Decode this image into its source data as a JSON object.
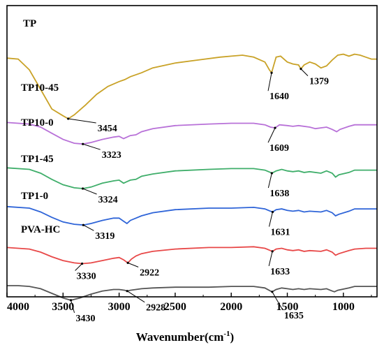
{
  "chart_data": {
    "type": "line",
    "title": "",
    "xlabel": "Wavenumber(cm",
    "xlabel_sup": "-1",
    "xlabel_tail": ")",
    "ylabel": "",
    "xlim": [
      4000,
      700
    ],
    "x_reversed": true,
    "x_ticks": [
      4000,
      3500,
      3000,
      2500,
      2000,
      1500,
      1000
    ],
    "grid": false,
    "legend": "none (series labelled inline)",
    "series": [
      {
        "name": "TP",
        "color": "#c9a227",
        "points": [
          [
            4000,
            0.62
          ],
          [
            3900,
            0.61
          ],
          [
            3800,
            0.5
          ],
          [
            3700,
            0.3
          ],
          [
            3600,
            0.1
          ],
          [
            3500,
            0.03
          ],
          [
            3454,
            0.0
          ],
          [
            3400,
            0.04
          ],
          [
            3300,
            0.14
          ],
          [
            3200,
            0.25
          ],
          [
            3100,
            0.33
          ],
          [
            3000,
            0.38
          ],
          [
            2950,
            0.4
          ],
          [
            2900,
            0.43
          ],
          [
            2800,
            0.47
          ],
          [
            2700,
            0.52
          ],
          [
            2500,
            0.57
          ],
          [
            2300,
            0.6
          ],
          [
            2100,
            0.63
          ],
          [
            2000,
            0.64
          ],
          [
            1900,
            0.65
          ],
          [
            1800,
            0.63
          ],
          [
            1700,
            0.58
          ],
          [
            1660,
            0.5
          ],
          [
            1640,
            0.47
          ],
          [
            1620,
            0.55
          ],
          [
            1600,
            0.63
          ],
          [
            1560,
            0.64
          ],
          [
            1500,
            0.58
          ],
          [
            1450,
            0.56
          ],
          [
            1400,
            0.55
          ],
          [
            1379,
            0.51
          ],
          [
            1350,
            0.55
          ],
          [
            1300,
            0.58
          ],
          [
            1250,
            0.56
          ],
          [
            1200,
            0.52
          ],
          [
            1150,
            0.54
          ],
          [
            1100,
            0.6
          ],
          [
            1050,
            0.65
          ],
          [
            1000,
            0.66
          ],
          [
            950,
            0.64
          ],
          [
            900,
            0.66
          ],
          [
            850,
            0.65
          ],
          [
            800,
            0.63
          ],
          [
            750,
            0.61
          ],
          [
            700,
            0.61
          ]
        ],
        "annotations": [
          {
            "label": "3454",
            "x": 3454
          },
          {
            "label": "1640",
            "x": 1640
          },
          {
            "label": "1379",
            "x": 1379
          }
        ]
      },
      {
        "name": "TP10-45",
        "color": "#b871d8",
        "points": [
          [
            4000,
            0.36
          ],
          [
            3800,
            0.34
          ],
          [
            3700,
            0.3
          ],
          [
            3600,
            0.22
          ],
          [
            3500,
            0.14
          ],
          [
            3400,
            0.09
          ],
          [
            3323,
            0.08
          ],
          [
            3250,
            0.1
          ],
          [
            3150,
            0.14
          ],
          [
            3050,
            0.17
          ],
          [
            3000,
            0.18
          ],
          [
            2960,
            0.15
          ],
          [
            2930,
            0.17
          ],
          [
            2900,
            0.19
          ],
          [
            2850,
            0.2
          ],
          [
            2800,
            0.24
          ],
          [
            2700,
            0.28
          ],
          [
            2500,
            0.32
          ],
          [
            2200,
            0.34
          ],
          [
            2000,
            0.35
          ],
          [
            1800,
            0.35
          ],
          [
            1700,
            0.33
          ],
          [
            1650,
            0.3
          ],
          [
            1609,
            0.29
          ],
          [
            1570,
            0.33
          ],
          [
            1500,
            0.32
          ],
          [
            1450,
            0.31
          ],
          [
            1400,
            0.32
          ],
          [
            1300,
            0.3
          ],
          [
            1250,
            0.28
          ],
          [
            1150,
            0.3
          ],
          [
            1100,
            0.27
          ],
          [
            1060,
            0.24
          ],
          [
            1030,
            0.27
          ],
          [
            950,
            0.31
          ],
          [
            900,
            0.33
          ],
          [
            800,
            0.33
          ],
          [
            700,
            0.33
          ]
        ],
        "annotations": [
          {
            "label": "3323",
            "x": 3323
          },
          {
            "label": "1609",
            "x": 1609
          }
        ]
      },
      {
        "name": "TP10-0",
        "color": "#3fae6a",
        "points": [
          [
            4000,
            0.27
          ],
          [
            3800,
            0.25
          ],
          [
            3700,
            0.2
          ],
          [
            3600,
            0.12
          ],
          [
            3500,
            0.05
          ],
          [
            3400,
            0.01
          ],
          [
            3324,
            0.0
          ],
          [
            3250,
            0.02
          ],
          [
            3150,
            0.07
          ],
          [
            3050,
            0.1
          ],
          [
            3000,
            0.11
          ],
          [
            2960,
            0.07
          ],
          [
            2930,
            0.09
          ],
          [
            2900,
            0.11
          ],
          [
            2850,
            0.12
          ],
          [
            2800,
            0.16
          ],
          [
            2700,
            0.19
          ],
          [
            2500,
            0.23
          ],
          [
            2200,
            0.25
          ],
          [
            2000,
            0.26
          ],
          [
            1800,
            0.26
          ],
          [
            1700,
            0.24
          ],
          [
            1650,
            0.21
          ],
          [
            1638,
            0.2
          ],
          [
            1600,
            0.23
          ],
          [
            1550,
            0.25
          ],
          [
            1500,
            0.23
          ],
          [
            1450,
            0.22
          ],
          [
            1400,
            0.23
          ],
          [
            1350,
            0.21
          ],
          [
            1300,
            0.22
          ],
          [
            1200,
            0.2
          ],
          [
            1150,
            0.23
          ],
          [
            1100,
            0.2
          ],
          [
            1070,
            0.15
          ],
          [
            1040,
            0.18
          ],
          [
            950,
            0.21
          ],
          [
            900,
            0.24
          ],
          [
            800,
            0.24
          ],
          [
            700,
            0.24
          ]
        ],
        "annotations": [
          {
            "label": "3324",
            "x": 3324
          },
          {
            "label": "1638",
            "x": 1638
          }
        ]
      },
      {
        "name": "TP1-45",
        "color": "#2e64d8",
        "points": [
          [
            4000,
            0.22
          ],
          [
            3800,
            0.2
          ],
          [
            3700,
            0.15
          ],
          [
            3600,
            0.08
          ],
          [
            3500,
            0.02
          ],
          [
            3400,
            -0.01
          ],
          [
            3319,
            -0.02
          ],
          [
            3250,
            0.0
          ],
          [
            3150,
            0.04
          ],
          [
            3050,
            0.07
          ],
          [
            3000,
            0.07
          ],
          [
            2960,
            0.03
          ],
          [
            2930,
            0.0
          ],
          [
            2900,
            0.04
          ],
          [
            2850,
            0.07
          ],
          [
            2800,
            0.1
          ],
          [
            2700,
            0.14
          ],
          [
            2500,
            0.18
          ],
          [
            2200,
            0.2
          ],
          [
            2000,
            0.2
          ],
          [
            1800,
            0.21
          ],
          [
            1700,
            0.19
          ],
          [
            1650,
            0.16
          ],
          [
            1631,
            0.15
          ],
          [
            1600,
            0.18
          ],
          [
            1550,
            0.19
          ],
          [
            1500,
            0.17
          ],
          [
            1450,
            0.16
          ],
          [
            1400,
            0.17
          ],
          [
            1350,
            0.15
          ],
          [
            1300,
            0.16
          ],
          [
            1200,
            0.15
          ],
          [
            1150,
            0.17
          ],
          [
            1100,
            0.14
          ],
          [
            1070,
            0.1
          ],
          [
            1040,
            0.12
          ],
          [
            950,
            0.16
          ],
          [
            900,
            0.19
          ],
          [
            800,
            0.19
          ],
          [
            700,
            0.19
          ]
        ],
        "annotations": [
          {
            "label": "3319",
            "x": 3319
          },
          {
            "label": "1631",
            "x": 1631
          }
        ]
      },
      {
        "name": "TP1-0",
        "color": "#e84848",
        "points": [
          [
            4000,
            0.16
          ],
          [
            3800,
            0.14
          ],
          [
            3700,
            0.1
          ],
          [
            3600,
            0.04
          ],
          [
            3500,
            -0.01
          ],
          [
            3400,
            -0.04
          ],
          [
            3330,
            -0.05
          ],
          [
            3250,
            -0.04
          ],
          [
            3150,
            -0.01
          ],
          [
            3050,
            0.02
          ],
          [
            3000,
            0.03
          ],
          [
            2960,
            0.0
          ],
          [
            2922,
            -0.04
          ],
          [
            2890,
            0.01
          ],
          [
            2850,
            0.05
          ],
          [
            2800,
            0.08
          ],
          [
            2700,
            0.11
          ],
          [
            2500,
            0.14
          ],
          [
            2200,
            0.16
          ],
          [
            2000,
            0.16
          ],
          [
            1800,
            0.17
          ],
          [
            1700,
            0.15
          ],
          [
            1650,
            0.12
          ],
          [
            1633,
            0.11
          ],
          [
            1600,
            0.14
          ],
          [
            1550,
            0.15
          ],
          [
            1500,
            0.13
          ],
          [
            1450,
            0.12
          ],
          [
            1400,
            0.13
          ],
          [
            1350,
            0.11
          ],
          [
            1300,
            0.12
          ],
          [
            1200,
            0.11
          ],
          [
            1150,
            0.13
          ],
          [
            1100,
            0.1
          ],
          [
            1070,
            0.06
          ],
          [
            1040,
            0.08
          ],
          [
            950,
            0.12
          ],
          [
            900,
            0.14
          ],
          [
            800,
            0.15
          ],
          [
            700,
            0.15
          ]
        ],
        "annotations": [
          {
            "label": "3330",
            "x": 3330
          },
          {
            "label": "2922",
            "x": 2922
          },
          {
            "label": "1633",
            "x": 1633
          }
        ]
      },
      {
        "name": "PVA-HC",
        "color": "#555555",
        "points": [
          [
            4000,
            0.1
          ],
          [
            3900,
            0.1
          ],
          [
            3800,
            0.09
          ],
          [
            3700,
            0.06
          ],
          [
            3600,
            0.0
          ],
          [
            3500,
            -0.06
          ],
          [
            3430,
            -0.09
          ],
          [
            3350,
            -0.06
          ],
          [
            3250,
            -0.01
          ],
          [
            3150,
            0.03
          ],
          [
            3050,
            0.05
          ],
          [
            3000,
            0.05
          ],
          [
            2950,
            0.04
          ],
          [
            2928,
            0.03
          ],
          [
            2900,
            0.04
          ],
          [
            2850,
            0.05
          ],
          [
            2800,
            0.06
          ],
          [
            2700,
            0.07
          ],
          [
            2500,
            0.08
          ],
          [
            2200,
            0.08
          ],
          [
            2000,
            0.09
          ],
          [
            1800,
            0.09
          ],
          [
            1700,
            0.07
          ],
          [
            1650,
            0.03
          ],
          [
            1635,
            0.02
          ],
          [
            1600,
            0.05
          ],
          [
            1550,
            0.07
          ],
          [
            1500,
            0.06
          ],
          [
            1450,
            0.05
          ],
          [
            1400,
            0.06
          ],
          [
            1350,
            0.05
          ],
          [
            1300,
            0.06
          ],
          [
            1200,
            0.05
          ],
          [
            1150,
            0.06
          ],
          [
            1100,
            0.03
          ],
          [
            1080,
            0.02
          ],
          [
            1050,
            0.04
          ],
          [
            950,
            0.07
          ],
          [
            900,
            0.09
          ],
          [
            800,
            0.09
          ],
          [
            700,
            0.09
          ]
        ],
        "annotations": [
          {
            "label": "3430",
            "x": 3430
          },
          {
            "label": "2928",
            "x": 2928
          },
          {
            "label": "1635",
            "x": 1635
          }
        ]
      }
    ]
  }
}
